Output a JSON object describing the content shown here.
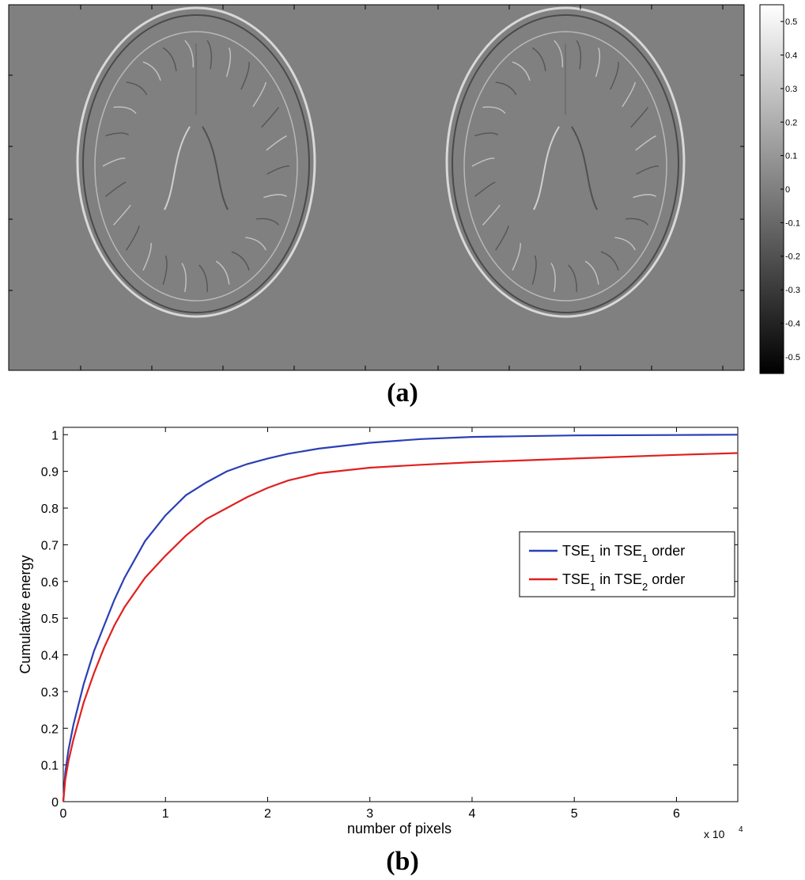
{
  "figure_a": {
    "caption": "(a)",
    "colorbar_ticks": [
      "0.5",
      "0.4",
      "0.3",
      "0.2",
      "0.1",
      "0",
      "-0.1",
      "-0.2",
      "-0.3",
      "-0.4",
      "-0.5"
    ],
    "colorbar_values": [
      0.5,
      0.4,
      0.3,
      0.2,
      0.1,
      0,
      -0.1,
      -0.2,
      -0.3,
      -0.4,
      -0.5
    ],
    "colorbar_range": [
      -0.55,
      0.55
    ],
    "background_color": "#808080"
  },
  "figure_b": {
    "caption": "(b)"
  },
  "chart_data": {
    "type": "line",
    "xlabel": "number of pixels",
    "ylabel": "Cumulative energy",
    "x_multiplier": "x 10",
    "x_multiplier_exp": "4",
    "xlim": [
      0,
      6.6
    ],
    "ylim": [
      0,
      1.02
    ],
    "xticks": [
      0,
      1,
      2,
      3,
      4,
      5,
      6
    ],
    "yticks": [
      0,
      0.1,
      0.2,
      0.3,
      0.4,
      0.5,
      0.6,
      0.7,
      0.8,
      0.9,
      1
    ],
    "xtick_labels": [
      "0",
      "1",
      "2",
      "3",
      "4",
      "5",
      "6"
    ],
    "ytick_labels": [
      "0",
      "0.1",
      "0.2",
      "0.3",
      "0.4",
      "0.5",
      "0.6",
      "0.7",
      "0.8",
      "0.9",
      "1"
    ],
    "legend_position": "right",
    "grid": false,
    "series": [
      {
        "legend_parts": [
          [
            "TSE",
            "1",
            " in TSE",
            "1",
            " order"
          ]
        ],
        "color": "#2b3fb5",
        "x": [
          0,
          0.02,
          0.05,
          0.1,
          0.2,
          0.3,
          0.4,
          0.5,
          0.6,
          0.8,
          1.0,
          1.2,
          1.4,
          1.6,
          1.8,
          2.0,
          2.2,
          2.5,
          3.0,
          3.5,
          4.0,
          5.0,
          6.0,
          6.6
        ],
        "y": [
          0.0,
          0.08,
          0.14,
          0.21,
          0.32,
          0.41,
          0.48,
          0.55,
          0.61,
          0.71,
          0.78,
          0.835,
          0.87,
          0.9,
          0.92,
          0.935,
          0.948,
          0.962,
          0.978,
          0.988,
          0.994,
          0.998,
          0.999,
          1.0
        ]
      },
      {
        "legend_parts": [
          [
            "TSE",
            "1",
            " in TSE",
            "2",
            " order"
          ]
        ],
        "color": "#e02020",
        "x": [
          0,
          0.02,
          0.05,
          0.1,
          0.2,
          0.3,
          0.4,
          0.5,
          0.6,
          0.8,
          1.0,
          1.2,
          1.4,
          1.6,
          1.8,
          2.0,
          2.2,
          2.5,
          3.0,
          3.5,
          4.0,
          5.0,
          6.0,
          6.6
        ],
        "y": [
          0.0,
          0.06,
          0.11,
          0.17,
          0.27,
          0.35,
          0.42,
          0.48,
          0.53,
          0.61,
          0.67,
          0.725,
          0.77,
          0.8,
          0.83,
          0.855,
          0.875,
          0.895,
          0.91,
          0.918,
          0.925,
          0.935,
          0.945,
          0.95
        ]
      }
    ]
  }
}
